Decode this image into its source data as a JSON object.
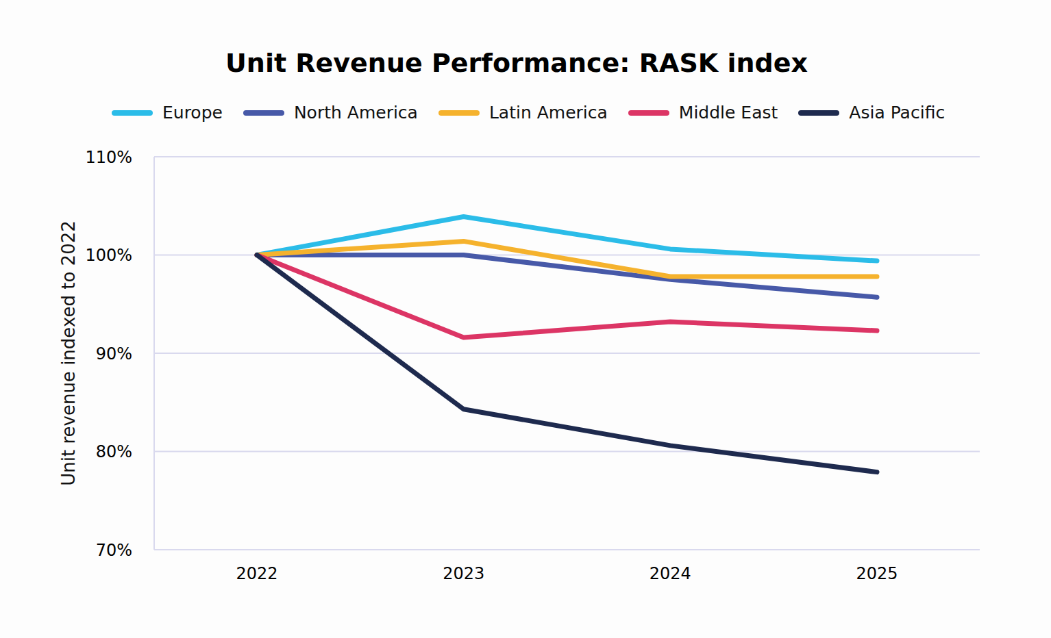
{
  "chart_data": {
    "type": "line",
    "title": "Unit Revenue Performance: RASK index",
    "y_label": "Unit revenue indexed to 2022",
    "categories": [
      "2022",
      "2023",
      "2024",
      "2025"
    ],
    "series": [
      {
        "name": "Europe",
        "color": "#2bbce8",
        "values": [
          100,
          103.9,
          100.6,
          99.4
        ]
      },
      {
        "name": "North America",
        "color": "#4759a8",
        "values": [
          100,
          100,
          97.5,
          95.7
        ]
      },
      {
        "name": "Latin America",
        "color": "#f5b22d",
        "values": [
          100,
          101.4,
          97.8,
          97.8
        ]
      },
      {
        "name": "Middle East",
        "color": "#dc3565",
        "values": [
          100,
          91.6,
          93.2,
          92.3
        ]
      },
      {
        "name": "Asia Pacific",
        "color": "#1e2a4e",
        "values": [
          100,
          84.3,
          80.6,
          77.9
        ]
      }
    ],
    "ylim": [
      70,
      110
    ],
    "yticks": [
      {
        "value": 70,
        "label": "70%"
      },
      {
        "value": 80,
        "label": "80%"
      },
      {
        "value": 90,
        "label": "90%"
      },
      {
        "value": 100,
        "label": "100%"
      },
      {
        "value": 110,
        "label": "110%"
      }
    ],
    "grid": true,
    "legend": "top"
  }
}
